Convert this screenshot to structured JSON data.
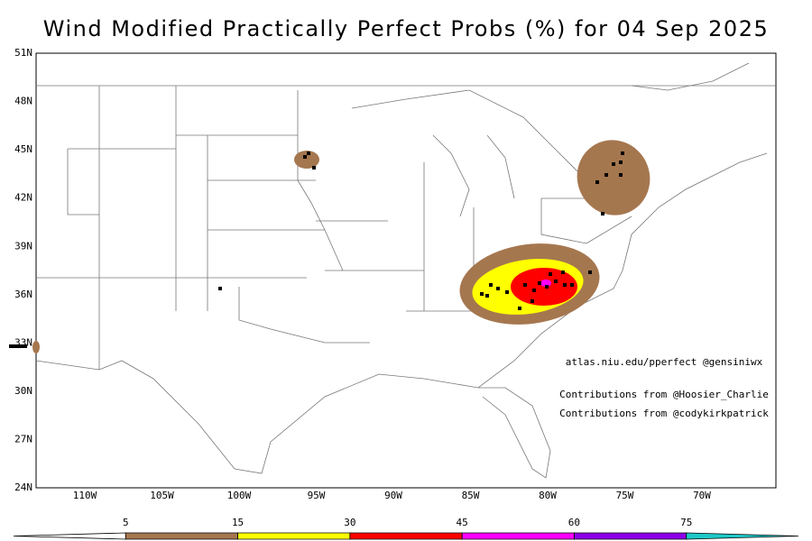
{
  "title": "Wind Modified Practically Perfect Probs (%) for 04 Sep 2025",
  "map": {
    "lat_ticks": [
      "24N",
      "27N",
      "30N",
      "33N",
      "36N",
      "39N",
      "42N",
      "45N",
      "48N",
      "51N"
    ],
    "lon_ticks": [
      "110W",
      "105W",
      "100W",
      "95W",
      "90W",
      "85W",
      "80W",
      "75W",
      "70W"
    ]
  },
  "credits": [
    "atlas.niu.edu/pperfect @gensiniwx",
    "Contributions from @Hoosier_Charlie",
    "Contributions from @codykirkpatrick"
  ],
  "colorbar": {
    "labels": [
      "5",
      "15",
      "30",
      "45",
      "60",
      "75"
    ],
    "colors": [
      "#ffffff",
      "#a5774f",
      "#ffff00",
      "#ff0000",
      "#ff00ff",
      "#8c00e6",
      "#1ec8c8"
    ]
  }
}
